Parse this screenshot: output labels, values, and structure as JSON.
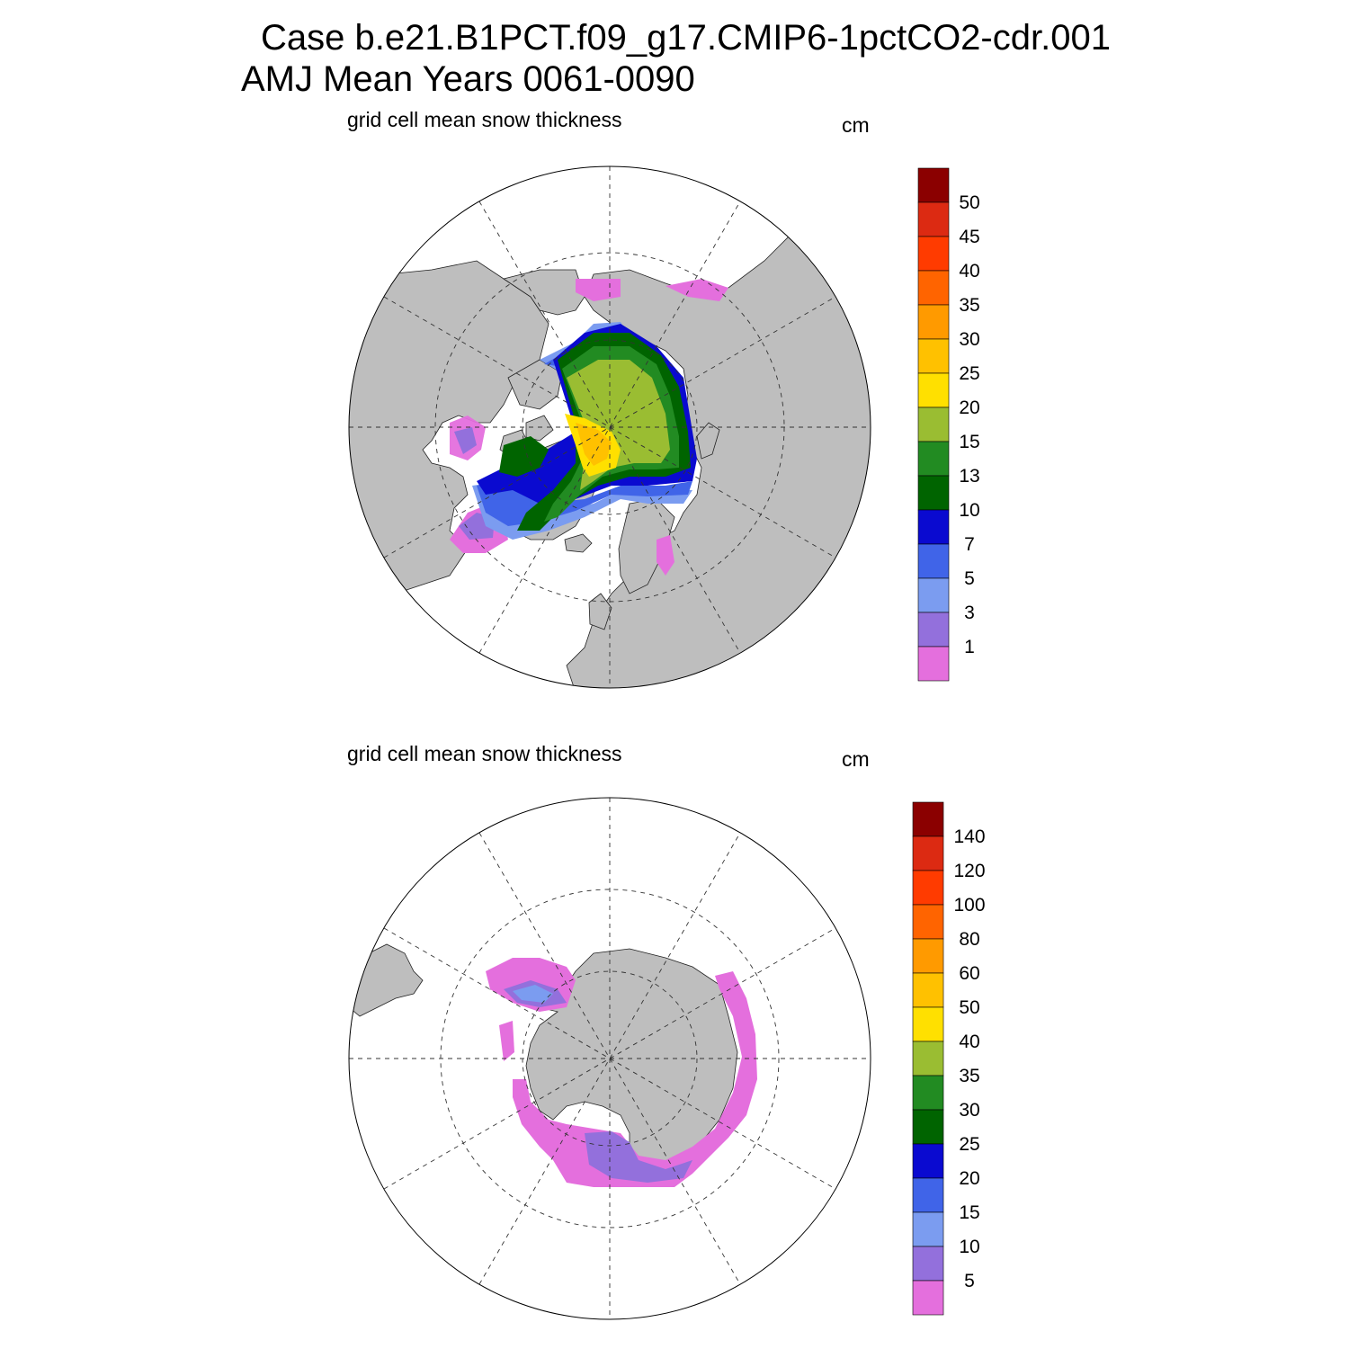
{
  "header": {
    "title_line1": "Case b.e21.B1PCT.f09_g17.CMIP6-1pctCO2-cdr.001",
    "title_line2": "AMJ Mean   Years 0061-0090"
  },
  "colors": {
    "land": "#bebebe",
    "ocean_no_ice": "#ffffff",
    "grid_line": "#333333"
  },
  "panels": [
    {
      "id": "north",
      "projection": "north polar stereographic",
      "subtitle": "grid cell mean snow thickness",
      "units": "cm",
      "colorbar": {
        "labels": [
          "1",
          "3",
          "5",
          "7",
          "10",
          "13",
          "15",
          "20",
          "25",
          "30",
          "35",
          "40",
          "45",
          "50"
        ],
        "colors": [
          "#e46fdd",
          "#9370dc",
          "#7b9cf0",
          "#4064e8",
          "#0a0ad0",
          "#006400",
          "#228b22",
          "#9abd32",
          "#ffe000",
          "#ffc100",
          "#ff9a00",
          "#ff6400",
          "#ff3b00",
          "#dc2a12",
          "#8b0000"
        ]
      }
    },
    {
      "id": "south",
      "projection": "south polar stereographic",
      "subtitle": "grid cell mean snow thickness",
      "units": "cm",
      "colorbar": {
        "labels": [
          "5",
          "10",
          "15",
          "20",
          "25",
          "30",
          "35",
          "40",
          "50",
          "60",
          "80",
          "100",
          "120",
          "140"
        ],
        "colors": [
          "#e46fdd",
          "#9370dc",
          "#7b9cf0",
          "#4064e8",
          "#0a0ad0",
          "#006400",
          "#228b22",
          "#9abd32",
          "#ffe000",
          "#ffc100",
          "#ff9a00",
          "#ff6400",
          "#ff3b00",
          "#dc2a12",
          "#8b0000"
        ]
      }
    }
  ]
}
